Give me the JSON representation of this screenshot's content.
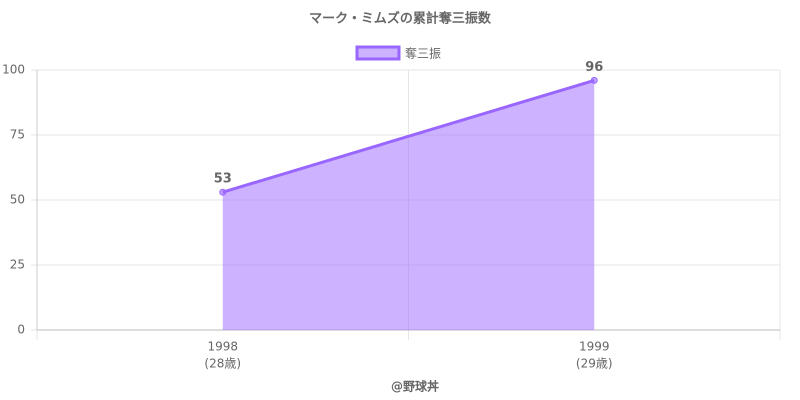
{
  "chart_data": {
    "type": "area",
    "title": "マーク・ミムズの累計奪三振数",
    "categories": [
      "1998",
      "1999"
    ],
    "category_sublabels": [
      "(28歳)",
      "(29歳)"
    ],
    "series": [
      {
        "name": "奪三振",
        "color": "#9966ff",
        "values": [
          53,
          96
        ]
      }
    ],
    "x_label": "@野球丼",
    "ylim": [
      0,
      100
    ],
    "yticks": [
      0,
      25,
      50,
      75,
      100
    ],
    "grid": true,
    "legend": "top"
  }
}
